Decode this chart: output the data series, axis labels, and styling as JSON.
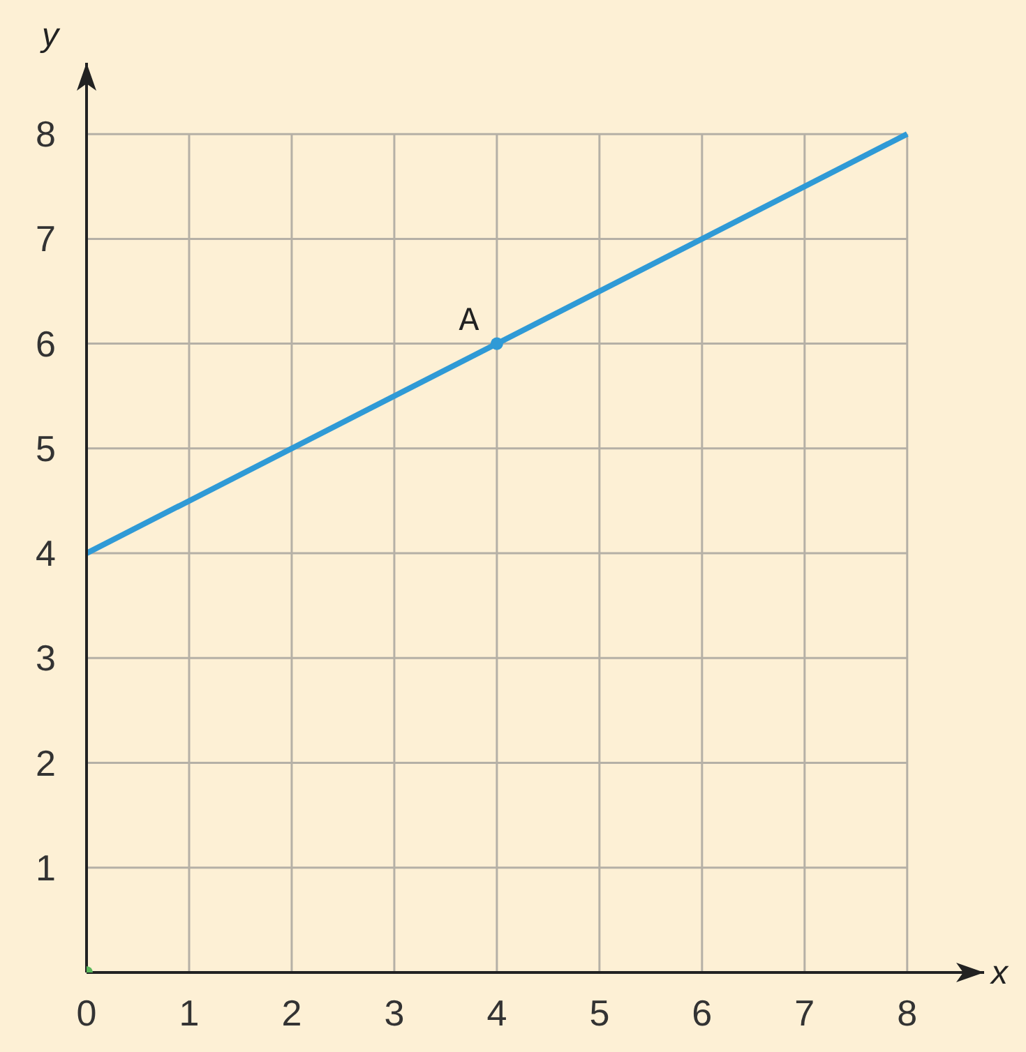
{
  "chart_data": {
    "type": "line",
    "xlabel": "x",
    "ylabel": "y",
    "xlim": [
      0,
      8.75
    ],
    "ylim": [
      0,
      8.68
    ],
    "xticks": [
      {
        "value": 0,
        "label": "0"
      },
      1,
      2,
      3,
      4,
      5,
      6,
      7,
      8
    ],
    "yticks": [
      1,
      2,
      3,
      4,
      5,
      6,
      7,
      8
    ],
    "grid": true,
    "line_style": "solid",
    "series": [
      {
        "color": "#2f9ad6",
        "x": [
          0,
          8
        ],
        "values": [
          4,
          8
        ],
        "marker": "none"
      },
      {
        "type": "scatter",
        "color": "#2f9ad6",
        "x": [
          4
        ],
        "values": [
          6
        ],
        "marker": "circle"
      },
      {
        "type": "scatter",
        "color": "#5cb85c",
        "x": [
          0
        ],
        "values": [
          0
        ],
        "marker": "circle"
      }
    ],
    "annotations": [
      {
        "text": "A",
        "x": 4,
        "y": 6
      }
    ]
  }
}
